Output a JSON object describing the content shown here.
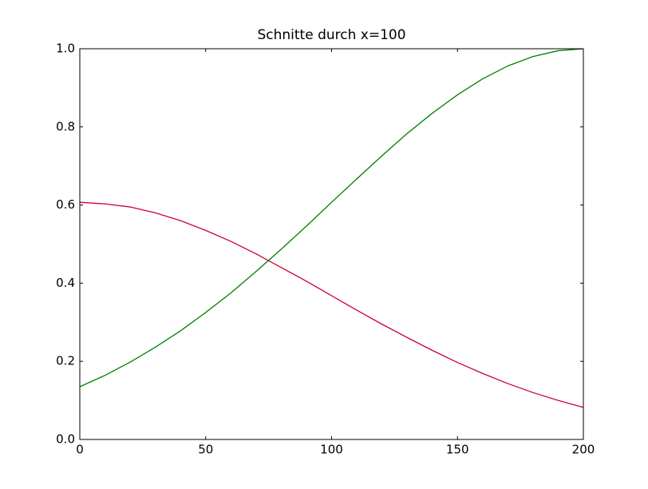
{
  "chart_data": {
    "type": "line",
    "title": "Schnitte durch x=100",
    "x": [
      0,
      10,
      20,
      30,
      40,
      50,
      60,
      70,
      80,
      90,
      100,
      110,
      120,
      130,
      140,
      150,
      160,
      170,
      180,
      190,
      200
    ],
    "series": [
      {
        "color": "#008000",
        "values": [
          0.135,
          0.164,
          0.198,
          0.236,
          0.278,
          0.325,
          0.375,
          0.43,
          0.487,
          0.546,
          0.607,
          0.667,
          0.726,
          0.783,
          0.835,
          0.882,
          0.923,
          0.956,
          0.98,
          0.995,
          1.0
        ]
      },
      {
        "color": "#cc0033",
        "values": [
          0.607,
          0.603,
          0.595,
          0.58,
          0.56,
          0.535,
          0.507,
          0.475,
          0.44,
          0.405,
          0.368,
          0.331,
          0.295,
          0.261,
          0.228,
          0.197,
          0.169,
          0.143,
          0.12,
          0.1,
          0.082
        ]
      }
    ],
    "xlim": [
      0,
      200
    ],
    "xticks": [
      0,
      50,
      100,
      150,
      200
    ],
    "ylim": [
      0,
      1
    ],
    "yticks": [
      {
        "value": 0,
        "label": "0.0"
      },
      0.2,
      0.4,
      0.6,
      0.8,
      {
        "value": 1,
        "label": "1.0"
      }
    ],
    "grid": false
  }
}
